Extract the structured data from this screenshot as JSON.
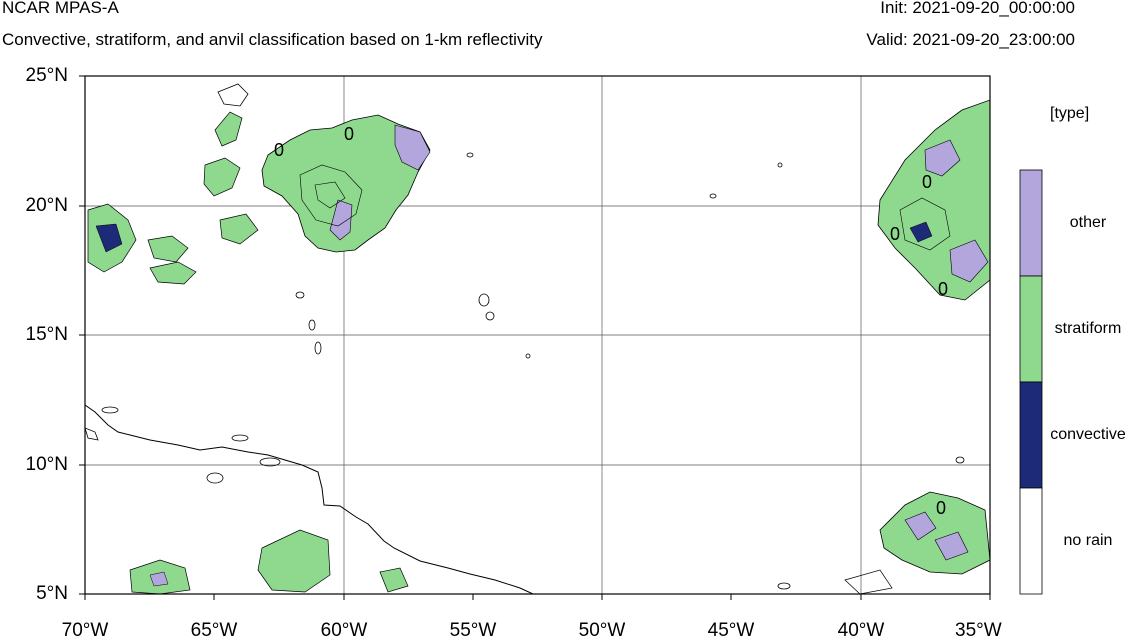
{
  "header": {
    "title": "NCAR MPAS-A",
    "subtitle": "Convective, stratiform, and anvil classification based on 1-km reflectivity",
    "init": "Init: 2021-09-20_00:00:00",
    "valid": "Valid: 2021-09-20_23:00:00"
  },
  "axes": {
    "y_ticks": [
      "25°N",
      "20°N",
      "15°N",
      "10°N",
      "5°N"
    ],
    "x_ticks": [
      "70°W",
      "65°W",
      "60°W",
      "55°W",
      "50°W",
      "45°W",
      "40°W",
      "35°W"
    ],
    "lat_range": [
      5,
      25
    ],
    "lon_range": [
      -70,
      -35
    ],
    "grid": true
  },
  "contour_labels": [
    "0",
    "0",
    "0",
    "0",
    "0",
    "0"
  ],
  "legend": {
    "title": "[type]",
    "items": [
      {
        "label": "other",
        "color": "#b2a6dc"
      },
      {
        "label": "stratiform",
        "color": "#8fd98f"
      },
      {
        "label": "convective",
        "color": "#1c2a78"
      },
      {
        "label": "no rain",
        "color": "#ffffff"
      }
    ]
  }
}
